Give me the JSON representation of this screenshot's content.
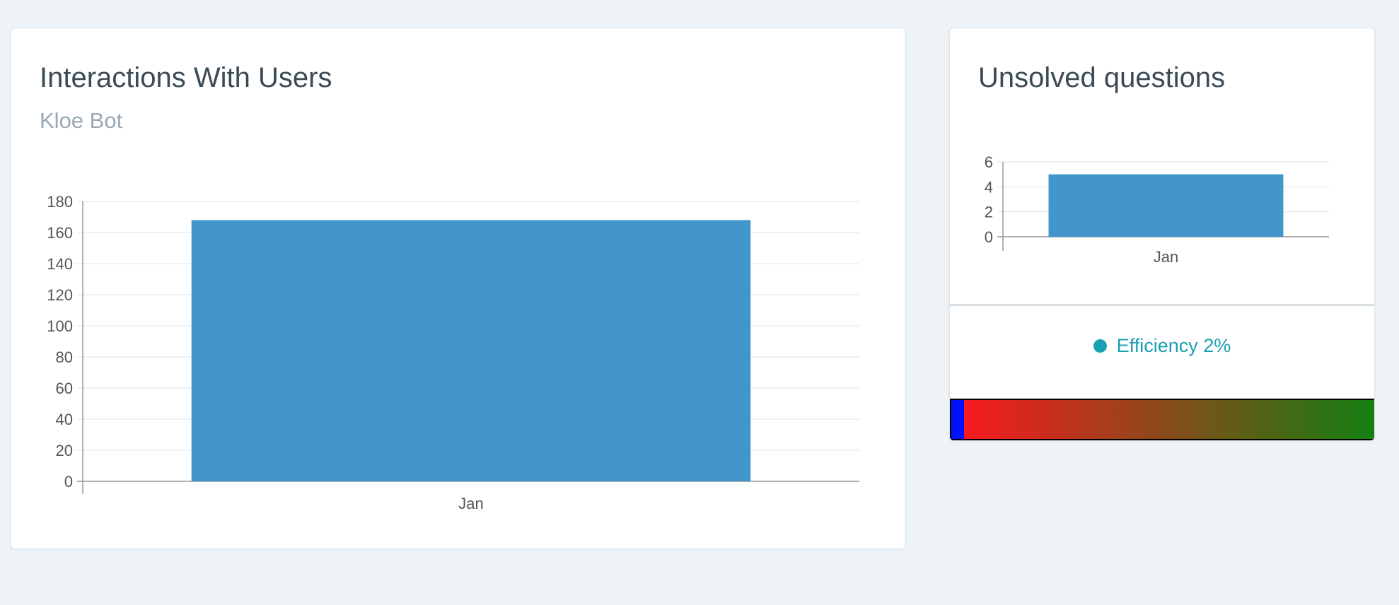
{
  "left_card": {
    "title": "Interactions With Users",
    "subtitle": "Kloe Bot"
  },
  "right_card": {
    "title": "Unsolved questions",
    "efficiency_label": "Efficiency 2%",
    "efficiency_dot_color": "#1a9fb2",
    "efficiency_fraction": 0.02,
    "gauge_colors": [
      "#ff1620",
      "#147f12"
    ],
    "gauge_fill_color": "#0011ff"
  },
  "chart_data": [
    {
      "type": "bar",
      "categories": [
        "Jan"
      ],
      "values": [
        168
      ],
      "ylim": [
        0,
        180
      ],
      "yticks": [
        0,
        20,
        40,
        60,
        80,
        100,
        120,
        140,
        160,
        180
      ],
      "bar_color": "#4396cc",
      "grid": true
    },
    {
      "type": "bar",
      "categories": [
        "Jan"
      ],
      "values": [
        5
      ],
      "ylim": [
        0,
        6
      ],
      "yticks": [
        0,
        2,
        4,
        6
      ],
      "bar_color": "#4396cc",
      "grid": true
    }
  ]
}
